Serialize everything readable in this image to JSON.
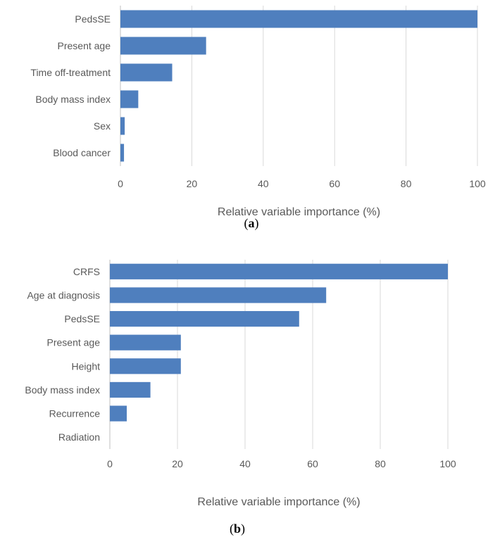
{
  "chart_data": [
    {
      "type": "bar",
      "orientation": "horizontal",
      "panel_label": "a",
      "categories": [
        "PedsSE",
        "Present age",
        "Time off-treatment",
        "Body mass index",
        "Sex",
        "Blood cancer"
      ],
      "values": [
        100,
        24,
        14.5,
        5,
        1.2,
        1
      ],
      "xlabel": "Relative variable importance (%)",
      "ylabel": "",
      "xlim": [
        0,
        100
      ],
      "xticks": [
        0,
        20,
        40,
        60,
        80,
        100
      ],
      "grid": true,
      "bar_color": "#4f7fbe"
    },
    {
      "type": "bar",
      "orientation": "horizontal",
      "panel_label": "b",
      "categories": [
        "CRFS",
        "Age at diagnosis",
        "PedsSE",
        "Present age",
        "Height",
        "Body mass index",
        "Recurrence",
        "Radiation"
      ],
      "values": [
        100,
        64,
        56,
        21,
        21,
        12,
        5,
        0
      ],
      "xlabel": "Relative variable importance (%)",
      "ylabel": "",
      "xlim": [
        0,
        100
      ],
      "xticks": [
        0,
        20,
        40,
        60,
        80,
        100
      ],
      "grid": true,
      "bar_color": "#4f7fbe"
    }
  ]
}
